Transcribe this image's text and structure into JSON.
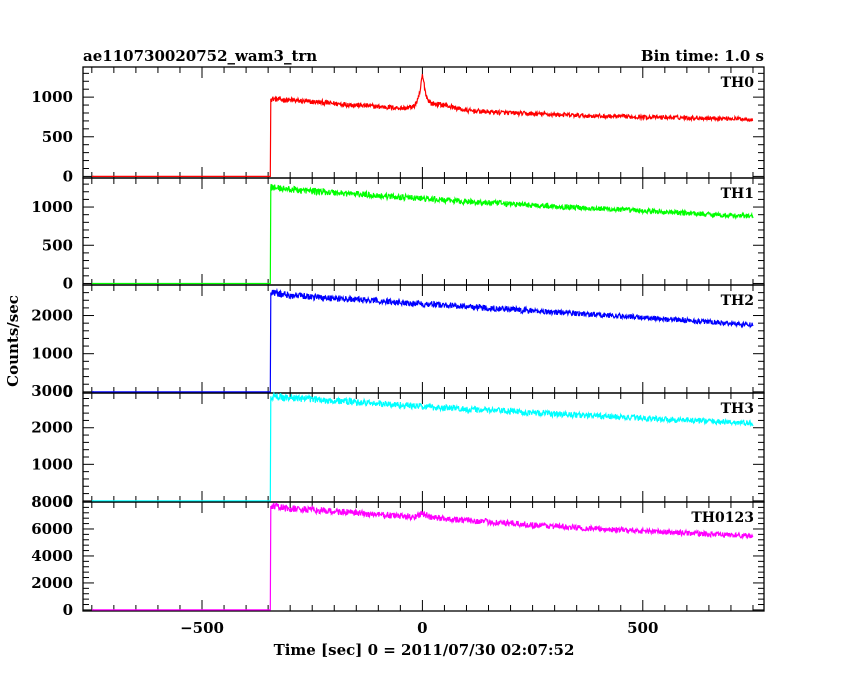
{
  "chart_data": {
    "type": "line",
    "title": "ae110730020752_wam3_trn",
    "bin_time_label": "Bin time: 1.0 s",
    "xlabel": "Time [sec] 0 = 2011/07/30 02:07:52",
    "ylabel": "Counts/sec",
    "xlim": [
      -770,
      775
    ],
    "x_ticks": [
      -500,
      0,
      500
    ],
    "x_tick_labels": [
      "−500",
      "0",
      "500"
    ],
    "shared_x_axis": true,
    "grid": false,
    "panels": [
      {
        "name": "TH0",
        "color": "#ff0000",
        "ylim": [
          -20,
          1380
        ],
        "y_ticks": [
          0,
          500,
          1000
        ],
        "y_tick_labels": [
          "0",
          "500",
          "1000"
        ],
        "x": [
          -750,
          -345,
          -344,
          -300,
          -200,
          -100,
          -40,
          -20,
          -10,
          -5,
          0,
          5,
          10,
          20,
          50,
          100,
          200,
          300,
          400,
          500,
          600,
          700,
          750
        ],
        "y": [
          0,
          0,
          980,
          960,
          920,
          880,
          860,
          880,
          960,
          1080,
          1280,
          1120,
          990,
          920,
          900,
          830,
          800,
          780,
          760,
          750,
          740,
          730,
          720
        ]
      },
      {
        "name": "TH1",
        "color": "#00ff00",
        "ylim": [
          -20,
          1380
        ],
        "y_ticks": [
          0,
          500,
          1000
        ],
        "y_tick_labels": [
          "0",
          "500",
          "1000"
        ],
        "x": [
          -750,
          -345,
          -344,
          -300,
          -200,
          -100,
          0,
          100,
          200,
          300,
          400,
          500,
          600,
          700,
          750
        ],
        "y": [
          0,
          0,
          1260,
          1230,
          1190,
          1150,
          1110,
          1070,
          1040,
          1010,
          980,
          950,
          920,
          890,
          880
        ]
      },
      {
        "name": "TH2",
        "color": "#0000ff",
        "ylim": [
          -30,
          2800
        ],
        "y_ticks": [
          0,
          1000,
          2000
        ],
        "y_tick_labels": [
          "0",
          "1000",
          "2000"
        ],
        "x": [
          -750,
          -345,
          -344,
          -300,
          -200,
          -100,
          0,
          100,
          200,
          300,
          400,
          500,
          600,
          700,
          750
        ],
        "y": [
          0,
          0,
          2600,
          2530,
          2450,
          2380,
          2310,
          2240,
          2160,
          2090,
          2020,
          1950,
          1870,
          1790,
          1760
        ]
      },
      {
        "name": "TH3",
        "color": "#00ffff",
        "ylim": [
          -30,
          2950
        ],
        "y_ticks": [
          0,
          1000,
          2000,
          3000
        ],
        "y_tick_labels": [
          "0",
          "1000",
          "2000",
          "3000"
        ],
        "x": [
          -750,
          -345,
          -344,
          -300,
          -200,
          -100,
          0,
          100,
          200,
          300,
          400,
          500,
          600,
          700,
          750
        ],
        "y": [
          0,
          0,
          2860,
          2820,
          2740,
          2660,
          2580,
          2510,
          2450,
          2380,
          2320,
          2260,
          2210,
          2150,
          2120
        ]
      },
      {
        "name": "TH0123",
        "color": "#ff00ff",
        "ylim": [
          -80,
          8000
        ],
        "y_ticks": [
          0,
          2000,
          4000,
          6000,
          8000
        ],
        "y_tick_labels": [
          "0",
          "2000",
          "4000",
          "6000",
          "8000"
        ],
        "x": [
          -750,
          -345,
          -344,
          -300,
          -200,
          -100,
          -20,
          0,
          20,
          100,
          200,
          300,
          400,
          500,
          600,
          700,
          750
        ],
        "y": [
          0,
          0,
          7700,
          7500,
          7300,
          7050,
          6900,
          7150,
          6850,
          6650,
          6400,
          6200,
          6000,
          5850,
          5700,
          5550,
          5500
        ]
      }
    ]
  }
}
